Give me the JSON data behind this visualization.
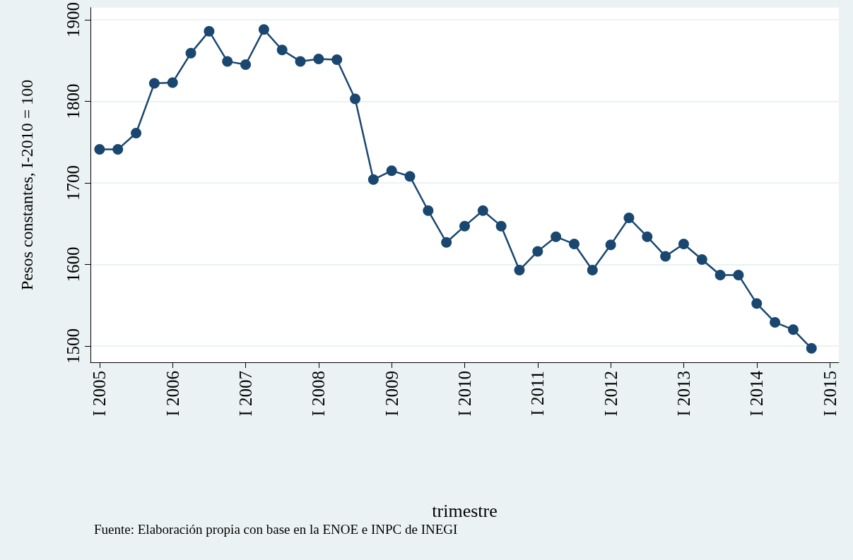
{
  "chart_data": {
    "type": "line",
    "xlabel": "trimestre",
    "ylabel": "Pesos constantes, I-2010 = 100",
    "annotations": [
      "Fuente: Elaboración propia con base en la ENOE e INPC de INEGI"
    ],
    "categories": [
      "I 2005",
      null,
      null,
      null,
      "I 2006",
      null,
      null,
      null,
      "I 2007",
      null,
      null,
      null,
      "I 2008",
      null,
      null,
      null,
      "I 2009",
      null,
      null,
      null,
      "I 2010",
      null,
      null,
      null,
      "I 2011",
      null,
      null,
      null,
      "I 2012",
      null,
      null,
      null,
      "I 2013",
      null,
      null,
      null,
      "I 2014",
      null,
      null,
      null,
      "I 2015"
    ],
    "series": [
      {
        "color": "#1a476f",
        "values": [
          1741,
          1741,
          1761,
          1822,
          1823,
          1859,
          1886,
          1849,
          1845,
          1888,
          1863,
          1849,
          1852,
          1851,
          1803,
          1704,
          1715,
          1708,
          1666,
          1627,
          1647,
          1666,
          1647,
          1593,
          1616,
          1634,
          1625,
          1593,
          1624,
          1657,
          1634,
          1610,
          1625,
          1606,
          1587,
          1587,
          1552,
          1529,
          1520,
          1497,
          null
        ]
      }
    ],
    "ylim": [
      1480,
      1915
    ],
    "yticks": [
      1500,
      1600,
      1700,
      1800,
      1900
    ],
    "grid": "y",
    "marker": "circle",
    "line_style": "solid"
  }
}
